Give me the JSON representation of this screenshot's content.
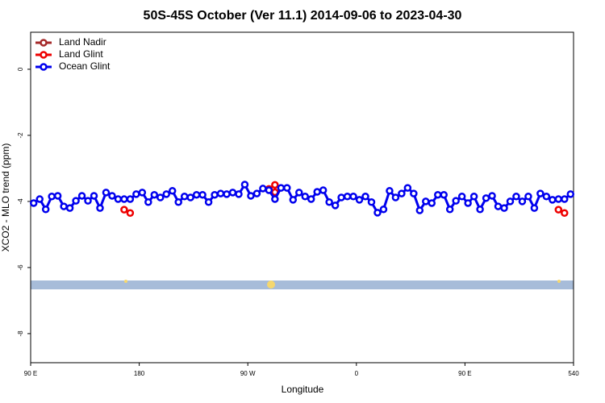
{
  "chart_data": {
    "type": "line",
    "title": "50S-45S October (Ver 11.1)   2014-09-06 to 2023-04-30",
    "x_label": "Longitude",
    "y_label": "XCO2 - MLO trend (ppm)",
    "xlim": [
      90,
      540
    ],
    "ylim": [
      -8.88,
      1.12
    ],
    "xticks": [
      {
        "value": 90,
        "label": "90 E"
      },
      180,
      {
        "value": 270,
        "label": "90 W"
      },
      {
        "value": 360,
        "label": "0"
      },
      {
        "value": 450,
        "label": "90 E"
      },
      540
    ],
    "yticks": [
      0,
      -2,
      -4,
      -6,
      -8
    ],
    "legend": "top-left",
    "series": [
      {
        "name": "Land Nadir",
        "color": "#a52a2a",
        "x": [],
        "values": []
      },
      {
        "name": "Land Glint",
        "color": "#ee0000",
        "x": [
          167.5,
          172.5,
          177.5,
          287.5,
          292.5,
          292.5,
          297.5,
          527.5,
          532.5
        ],
        "values": [
          -4.25,
          -4.35,
          null,
          -3.62,
          -3.5,
          -3.72,
          null,
          -4.25,
          -4.35
        ]
      },
      {
        "name": "Ocean Glint",
        "color": "#0000ee",
        "x": [
          92.5,
          97.5,
          102.5,
          107.5,
          112.5,
          117.5,
          122.5,
          127.5,
          132.5,
          137.5,
          142.5,
          147.5,
          152.5,
          157.5,
          162.5,
          167.5,
          172.5,
          177.5,
          182.5,
          187.5,
          192.5,
          197.5,
          202.5,
          207.5,
          212.5,
          217.5,
          222.5,
          227.5,
          232.5,
          237.5,
          242.5,
          247.5,
          252.5,
          257.5,
          262.5,
          267.5,
          272.5,
          277.5,
          282.5,
          287.5,
          292.5,
          297.5,
          302.5,
          307.5,
          312.5,
          317.5,
          322.5,
          327.5,
          332.5,
          337.5,
          342.5,
          347.5,
          352.5,
          357.5,
          362.5,
          367.5,
          372.5,
          377.5,
          382.5,
          387.5,
          392.5,
          397.5,
          402.5,
          407.5,
          412.5,
          417.5,
          422.5,
          427.5,
          432.5,
          437.5,
          442.5,
          447.5,
          452.5,
          457.5,
          462.5,
          467.5,
          472.5,
          477.5,
          482.5,
          487.5,
          492.5,
          497.5,
          502.5,
          507.5,
          512.5,
          517.5,
          522.5,
          527.5,
          532.5,
          537.5
        ],
        "values": [
          -4.05,
          -3.93,
          -4.24,
          -3.85,
          -3.83,
          -4.15,
          -4.2,
          -3.98,
          -3.83,
          -3.98,
          -3.83,
          -4.2,
          -3.73,
          -3.83,
          -3.93,
          -3.93,
          -3.93,
          -3.78,
          -3.73,
          -4.02,
          -3.8,
          -3.88,
          -3.78,
          -3.68,
          -4.02,
          -3.85,
          -3.88,
          -3.8,
          -3.8,
          -4.02,
          -3.8,
          -3.76,
          -3.78,
          -3.73,
          -3.78,
          -3.49,
          -3.83,
          -3.76,
          -3.61,
          -3.66,
          -3.93,
          -3.59,
          -3.59,
          -3.95,
          -3.73,
          -3.85,
          -3.93,
          -3.71,
          -3.66,
          -4.02,
          -4.12,
          -3.88,
          -3.85,
          -3.85,
          -3.95,
          -3.85,
          -4.02,
          -4.34,
          -4.24,
          -3.68,
          -3.88,
          -3.76,
          -3.59,
          -3.76,
          -4.27,
          -4.0,
          -4.05,
          -3.8,
          -3.8,
          -4.24,
          -3.98,
          -3.85,
          -4.05,
          -3.85,
          -4.24,
          -3.9,
          -3.83,
          -4.15,
          -4.2,
          -4.0,
          -3.85,
          -4.0,
          -3.85,
          -4.2,
          -3.76,
          -3.85,
          -3.95,
          -3.93,
          -3.93,
          -3.78
        ]
      }
    ]
  }
}
